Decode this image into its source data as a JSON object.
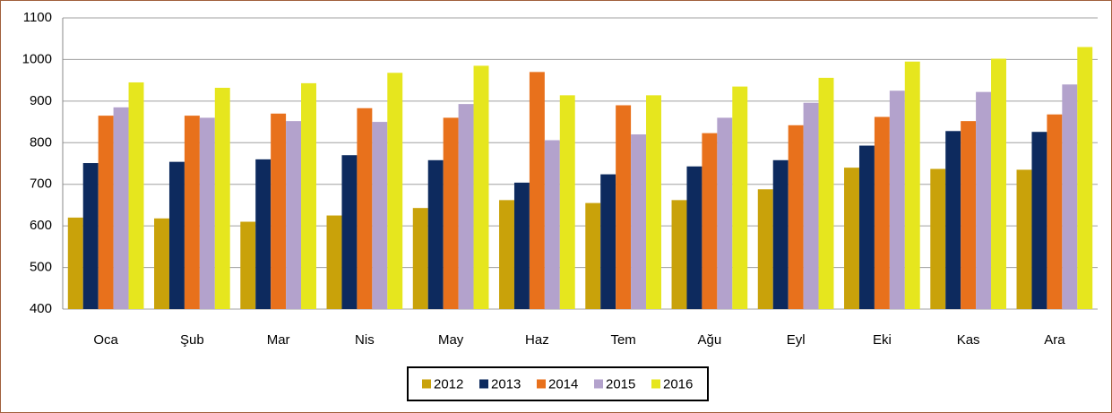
{
  "chart_data": {
    "type": "bar",
    "categories": [
      "Oca",
      "Şub",
      "Mar",
      "Nis",
      "May",
      "Haz",
      "Tem",
      "Ağu",
      "Eyl",
      "Eki",
      "Kas",
      "Ara"
    ],
    "series": [
      {
        "name": "2012",
        "color": "#c9a20a",
        "values": [
          620,
          618,
          610,
          625,
          643,
          662,
          655,
          662,
          688,
          740,
          737,
          735
        ]
      },
      {
        "name": "2013",
        "color": "#0d2a5e",
        "values": [
          751,
          754,
          760,
          770,
          758,
          704,
          724,
          743,
          758,
          793,
          828,
          826
        ]
      },
      {
        "name": "2014",
        "color": "#e8711c",
        "values": [
          865,
          865,
          870,
          883,
          860,
          970,
          890,
          823,
          842,
          862,
          852,
          868
        ]
      },
      {
        "name": "2015",
        "color": "#b3a2cc",
        "values": [
          885,
          860,
          852,
          850,
          893,
          806,
          820,
          860,
          896,
          925,
          922,
          940
        ]
      },
      {
        "name": "2016",
        "color": "#e6e61e",
        "values": [
          945,
          932,
          943,
          968,
          985,
          914,
          914,
          935,
          956,
          995,
          1002,
          1030
        ]
      }
    ],
    "ylim": [
      400,
      1100
    ],
    "yticks": [
      400,
      500,
      600,
      700,
      800,
      900,
      1000,
      1100
    ],
    "grid": true,
    "legend": "bottom"
  }
}
